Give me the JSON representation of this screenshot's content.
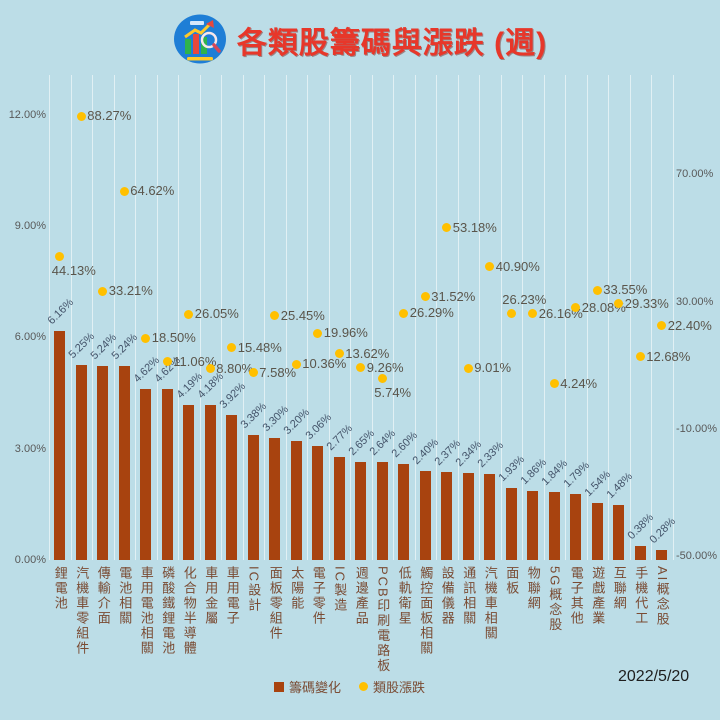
{
  "title": "各類股籌碼與漲跌 (週)",
  "date_label": "2022/5/20",
  "legend": {
    "bar_label": "籌碼變化",
    "dot_label": "類股漲跌"
  },
  "colors": {
    "background": "#BCDDE7",
    "bar": "#A8430F",
    "dot": "#FFC000",
    "title": "#E7372A",
    "bar_label": "#44546A",
    "dot_label": "#5A554B",
    "axis_label": "#595959",
    "category_label": "#7A4B33",
    "gridline": "rgba(255,255,255,0.55)",
    "date": "#1E1E1E"
  },
  "icons": {
    "logo": "site-logo-icon"
  },
  "chart_data": {
    "type": "bar",
    "subtype": "combo-bar-scatter-dual-axis",
    "title": "各類股籌碼與漲跌 (週)",
    "grid": "vertical-on",
    "legend_position": "bottom",
    "categories": [
      "鋰電池",
      "汽機車零組件",
      "傳輸介面",
      "電池相關",
      "車用電池相關",
      "磷酸鐵鋰電池",
      "化合物半導體",
      "車用金屬",
      "車用電子",
      "IC設計",
      "面板零組件",
      "太陽能",
      "電子零件",
      "IC製造",
      "週邊產品",
      "PCB印刷電路板",
      "低軌衛星",
      "觸控面板相關",
      "設備儀器",
      "通訊相關",
      "汽機車相關",
      "面板",
      "物聯網",
      "5G概念股",
      "電子其他",
      "遊戲產業",
      "互聯網",
      "手機代工",
      "AI概念股"
    ],
    "series": [
      {
        "name": "籌碼變化",
        "type": "bar",
        "axis": "left",
        "unit": "%",
        "values": [
          6.16,
          5.25,
          5.24,
          5.24,
          4.62,
          4.62,
          4.19,
          4.18,
          3.92,
          3.38,
          3.3,
          3.2,
          3.06,
          2.77,
          2.65,
          2.64,
          2.6,
          2.4,
          2.37,
          2.34,
          2.33,
          1.93,
          1.86,
          1.84,
          1.79,
          1.54,
          1.48,
          0.38,
          0.28
        ]
      },
      {
        "name": "類股漲跌",
        "type": "scatter",
        "axis": "right",
        "unit": "%",
        "values": [
          44.13,
          88.27,
          33.21,
          64.62,
          18.5,
          11.06,
          26.05,
          8.8,
          15.48,
          7.58,
          25.45,
          10.36,
          19.96,
          13.62,
          9.26,
          5.74,
          26.29,
          31.52,
          53.18,
          9.01,
          40.9,
          26.23,
          26.16,
          4.24,
          28.08,
          33.55,
          29.33,
          12.68,
          22.4
        ],
        "label_placements": {
          "0": "below",
          "15": "below",
          "21": "above"
        }
      }
    ],
    "left_axis": {
      "tick_labels": [
        "0.00%",
        "3.00%",
        "6.00%",
        "9.00%",
        "12.00%"
      ],
      "tick_values": [
        0,
        3,
        6,
        9,
        12
      ],
      "range": [
        0,
        12
      ]
    },
    "right_axis": {
      "tick_labels": [
        "-50.00%",
        "-10.00%",
        "30.00%",
        "70.00%"
      ],
      "tick_values": [
        -50,
        -10,
        30,
        70
      ],
      "range": [
        -51,
        89
      ]
    }
  }
}
